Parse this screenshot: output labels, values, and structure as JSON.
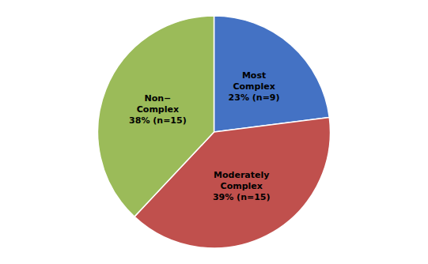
{
  "chart_data": {
    "type": "pie",
    "categories": [
      "Most\nComplex\n23% (n=9)",
      "Moderately\nComplex\n39% (n=15)",
      "Non−\nComplex\n38% (n=15)"
    ],
    "values": [
      23,
      39,
      38
    ],
    "colors": [
      "#4472C4",
      "#C0504D",
      "#9BBB59"
    ]
  }
}
